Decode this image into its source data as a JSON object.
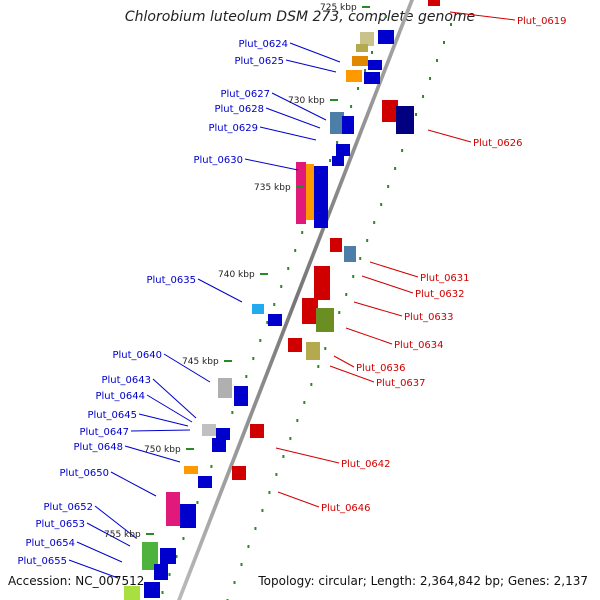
{
  "title": "Chlorobium luteolum DSM 273, complete genome",
  "accession_label": "Accession: NC_007512",
  "topology_label": "Topology: circular; Length: 2,364,842 bp; Genes: 2,137",
  "ticks": [
    "725 kbp",
    "730 kbp",
    "735 kbp",
    "740 kbp",
    "745 kbp",
    "750 kbp",
    "755 kbp"
  ],
  "colors": {
    "forward": "#d00000",
    "reverse": "#0000cc",
    "backbone": "#888888",
    "tick_mark": "#2a8a2a"
  },
  "reverse_genes": [
    "Plut_0624",
    "Plut_0625",
    "Plut_0627",
    "Plut_0628",
    "Plut_0629",
    "Plut_0630",
    "Plut_0635",
    "Plut_0640",
    "Plut_0643",
    "Plut_0644",
    "Plut_0645",
    "Plut_0647",
    "Plut_0648",
    "Plut_0650",
    "Plut_0652",
    "Plut_0653",
    "Plut_0654",
    "Plut_0655"
  ],
  "forward_genes": [
    "Plut_0619",
    "Plut_0626",
    "Plut_0631",
    "Plut_0632",
    "Plut_0633",
    "Plut_0634",
    "Plut_0636",
    "Plut_0637",
    "Plut_0642",
    "Plut_0646"
  ]
}
